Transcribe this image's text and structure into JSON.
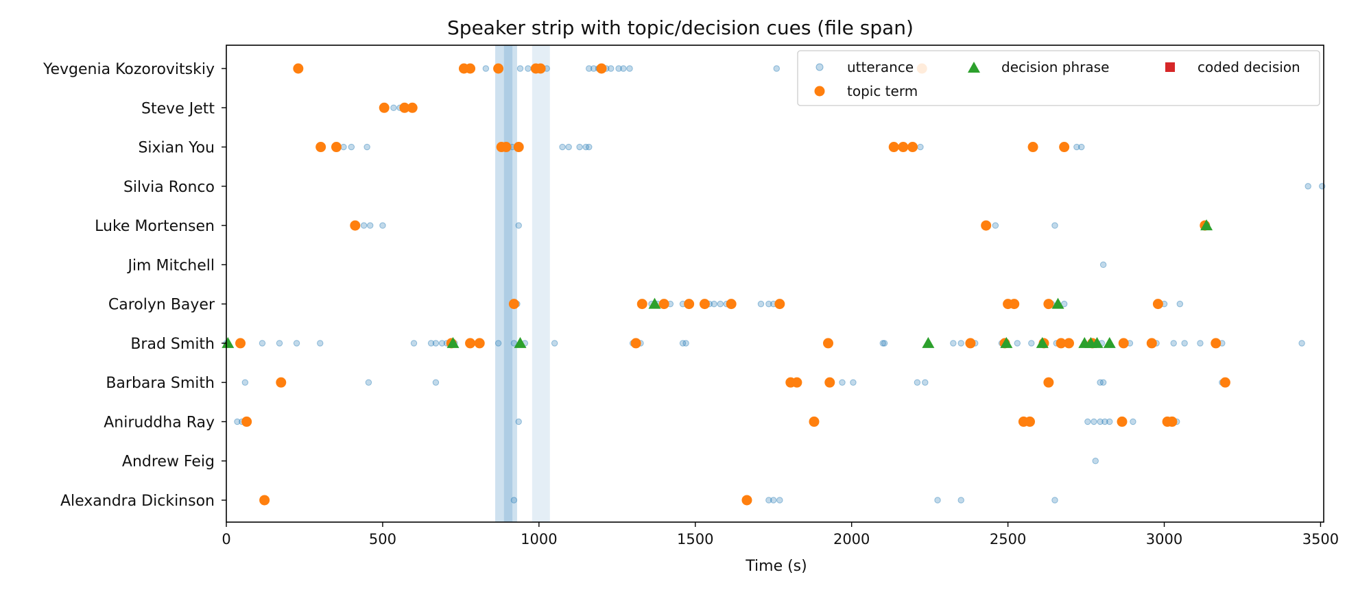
{
  "chart_data": {
    "type": "scatter",
    "title": "Speaker strip with topic/decision cues (file span)",
    "xlabel": "Time (s)",
    "ylabel": "",
    "xlim": [
      0,
      3510
    ],
    "xticks": [
      0,
      500,
      1000,
      1500,
      2000,
      2500,
      3000,
      3500
    ],
    "grid": false,
    "legend_position": "top-right",
    "speakers": [
      "Yevgenia Kozorovitskiy",
      "Steve Jett",
      "Sixian You",
      "Silvia Ronco",
      "Luke Mortensen",
      "Jim Mitchell",
      "Carolyn Bayer",
      "Brad Smith",
      "Barbara Smith",
      "Aniruddha Ray",
      "Andrew Feig",
      "Alexandra Dickinson"
    ],
    "shaded_spans": [
      {
        "start": 860,
        "end": 930,
        "opacity": 0.22
      },
      {
        "start": 888,
        "end": 915,
        "opacity": 0.18
      },
      {
        "start": 978,
        "end": 1035,
        "opacity": 0.12
      }
    ],
    "series": [
      {
        "name": "utterance",
        "color": "#1f77b4",
        "marker": "circle",
        "points": [
          {
            "s": "Yevgenia Kozorovitskiy",
            "x": [
              830,
              870,
              940,
              965,
              985,
              1005,
              1025,
              1160,
              1175,
              1190,
              1215,
              1230,
              1255,
              1270,
              1290,
              1760,
              2225
            ]
          },
          {
            "s": "Steve Jett",
            "x": [
              535,
              555
            ]
          },
          {
            "s": "Sixian You",
            "x": [
              875,
              900,
              915,
              930,
              375,
              400,
              450,
              1075,
              1095,
              1130,
              1150,
              1160,
              2220,
              2720,
              2735
            ]
          },
          {
            "s": "Silvia Ronco",
            "x": [
              3460,
              3505
            ]
          },
          {
            "s": "Luke Mortensen",
            "x": [
              440,
              460,
              500,
              935,
              2460,
              2650,
              3135
            ]
          },
          {
            "s": "Jim Mitchell",
            "x": [
              2805
            ]
          },
          {
            "s": "Carolyn Bayer",
            "x": [
              915,
              930,
              1360,
              1380,
              1420,
              1460,
              1475,
              1545,
              1560,
              1580,
              1600,
              1710,
              1735,
              1750,
              2640,
              2680,
              3000,
              3050
            ]
          },
          {
            "s": "Brad Smith",
            "x": [
              0,
              115,
              170,
              225,
              300,
              600,
              655,
              670,
              690,
              705,
              730,
              870,
              920,
              955,
              1050,
              1300,
              1325,
              1460,
              1470,
              2100,
              2105,
              2325,
              2350,
              2395,
              2480,
              2530,
              2575,
              2620,
              2655,
              2700,
              2745,
              2765,
              2785,
              2800,
              2875,
              2890,
              2975,
              3030,
              3065,
              3115,
              3185,
              3440
            ]
          },
          {
            "s": "Barbara Smith",
            "x": [
              60,
              455,
              670,
              1970,
              2005,
              2210,
              2235,
              2795,
              2805,
              3185
            ]
          },
          {
            "s": "Aniruddha Ray",
            "x": [
              35,
              50,
              935,
              2755,
              2775,
              2795,
              2810,
              2825,
              2900,
              3020,
              3040
            ]
          },
          {
            "s": "Andrew Feig",
            "x": [
              2780
            ]
          },
          {
            "s": "Alexandra Dickinson",
            "x": [
              920,
              1735,
              1750,
              1770,
              2275,
              2350,
              2650
            ]
          }
        ]
      },
      {
        "name": "topic term",
        "color": "#ff7f0e",
        "marker": "circle",
        "points": [
          {
            "s": "Yevgenia Kozorovitskiy",
            "x": [
              230,
              760,
              780,
              870,
              990,
              1005,
              1200,
              2225
            ]
          },
          {
            "s": "Steve Jett",
            "x": [
              505,
              570,
              595
            ]
          },
          {
            "s": "Sixian You",
            "x": [
              302,
              352,
              880,
              895,
              935,
              2135,
              2165,
              2195,
              2580,
              2680
            ]
          },
          {
            "s": "Luke Mortensen",
            "x": [
              412,
              2430,
              3130
            ]
          },
          {
            "s": "Carolyn Bayer",
            "x": [
              920,
              1330,
              1400,
              1480,
              1530,
              1615,
              1770,
              2500,
              2520,
              2630,
              2980
            ]
          },
          {
            "s": "Brad Smith",
            "x": [
              45,
              720,
              780,
              810,
              1310,
              1925,
              2380,
              2490,
              2615,
              2670,
              2695,
              2770,
              2870,
              2960,
              3165
            ]
          },
          {
            "s": "Barbara Smith",
            "x": [
              175,
              1805,
              1825,
              1930,
              2630,
              3195
            ]
          },
          {
            "s": "Aniruddha Ray",
            "x": [
              65,
              1880,
              2550,
              2570,
              2865,
              3010,
              3025
            ]
          },
          {
            "s": "Alexandra Dickinson",
            "x": [
              122,
              1665
            ]
          }
        ]
      },
      {
        "name": "decision phrase",
        "color": "#2ca02c",
        "marker": "triangle",
        "points": [
          {
            "s": "Luke Mortensen",
            "x": [
              3135
            ]
          },
          {
            "s": "Carolyn Bayer",
            "x": [
              1370,
              2660
            ]
          },
          {
            "s": "Brad Smith",
            "x": [
              5,
              725,
              940,
              2245,
              2495,
              2610,
              2745,
              2765,
              2785,
              2825
            ]
          }
        ]
      },
      {
        "name": "coded decision",
        "color": "#d62728",
        "marker": "square",
        "points": []
      }
    ]
  }
}
